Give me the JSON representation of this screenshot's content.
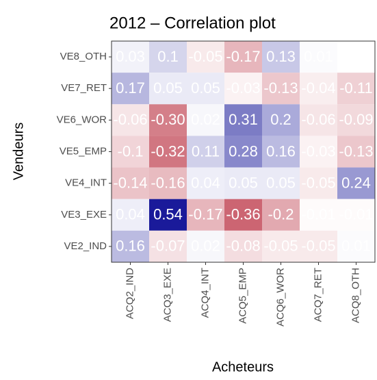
{
  "chart_data": {
    "type": "heatmap",
    "title": "2012 – Correlation plot",
    "x_label": "Acheteurs",
    "y_label": "Vendeurs",
    "x_categories": [
      "ACQ2_IND",
      "ACQ3_EXE",
      "ACQ4_INT",
      "ACQ5_EMP",
      "ACQ6_WOR",
      "ACQ7_RET",
      "ACQ8_OTH"
    ],
    "y_categories": [
      "VE8_OTH",
      "VE7_RET",
      "VE6_WOR",
      "VE5_EMP",
      "VE4_INT",
      "VE3_EXE",
      "VE2_IND"
    ],
    "values": [
      [
        0.03,
        0.1,
        -0.05,
        -0.17,
        0.13,
        0.01,
        null
      ],
      [
        0.17,
        0.05,
        0.05,
        -0.03,
        -0.13,
        -0.04,
        -0.11
      ],
      [
        -0.06,
        -0.3,
        0.02,
        0.31,
        0.2,
        -0.06,
        -0.09
      ],
      [
        -0.1,
        -0.32,
        0.11,
        0.28,
        0.16,
        -0.03,
        -0.13
      ],
      [
        -0.14,
        -0.16,
        0.04,
        0.05,
        0.05,
        -0.05,
        0.24
      ],
      [
        0.04,
        0.54,
        -0.17,
        -0.36,
        -0.2,
        -0.01,
        -0.01
      ],
      [
        0.16,
        -0.07,
        0.02,
        -0.08,
        -0.05,
        -0.05,
        0.01
      ]
    ],
    "value_labels": [
      [
        "0.03",
        "0.1",
        "-0.05",
        "-0.17",
        "0.13",
        "0.01",
        null
      ],
      [
        "0.17",
        "0.05",
        "0.05",
        "-0.03",
        "-0.13",
        "-0.04",
        "-0.11"
      ],
      [
        "-0.06",
        "-0.30",
        "0.02",
        "0.31",
        "0.2",
        "-0.06",
        "-0.09"
      ],
      [
        "-0.1",
        "-0.32",
        "0.11",
        "0.28",
        "0.16",
        "-0.03",
        "-0.13"
      ],
      [
        "-0.14",
        "-0.16",
        "0.04",
        "0.05",
        "0.05",
        "-0.05",
        "0.24"
      ],
      [
        "0.04",
        "0.54",
        "-0.17",
        "-0.36",
        "-0.2",
        "-0.01",
        "-0.01"
      ],
      [
        "0.16",
        "-0.07",
        "0.02",
        "-0.08",
        "-0.05",
        "-0.05",
        "0.01"
      ]
    ],
    "colors": {
      "low": "#b2182b",
      "mid": "#ffffff",
      "high": "#1a1a9a"
    }
  }
}
